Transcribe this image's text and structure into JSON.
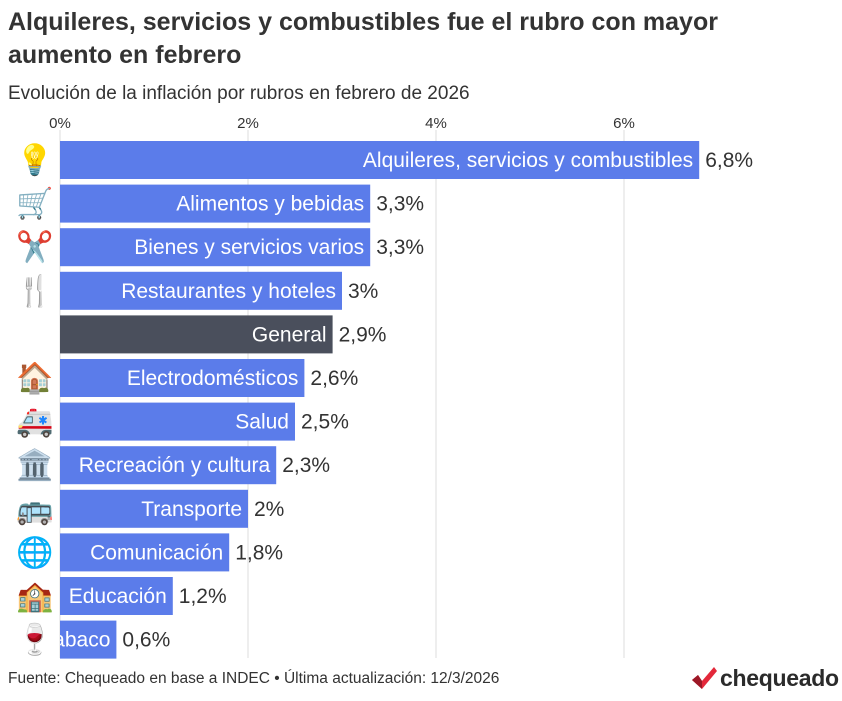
{
  "header": {
    "title": "Alquileres, servicios y combustibles fue el rubro con mayor aumento en febrero",
    "subtitle": "Evolución de la inflación por rubros en febrero de 2026"
  },
  "footer": {
    "source": "Fuente: Chequeado en base a INDEC • Última actualización: 12/3/2026",
    "logo_text": "chequeado"
  },
  "colors": {
    "bar": "#5b7cea",
    "highlight": "#4a4f5c",
    "grid": "#dddddd",
    "logo_accent": "#e3283a"
  },
  "chart_data": {
    "type": "bar",
    "orientation": "horizontal",
    "title": "Alquileres, servicios y combustibles fue el rubro con mayor aumento en febrero",
    "subtitle": "Evolución de la inflación por rubros en febrero de 2026",
    "xlim": [
      0,
      7
    ],
    "ticks": [
      0,
      2,
      4,
      6
    ],
    "tick_labels": [
      "0%",
      "2%",
      "4%",
      "6%"
    ],
    "grid": true,
    "categories": [
      "Alquileres, servicios y combustibles",
      "Alimentos y bebidas",
      "Bienes y servicios varios",
      "Restaurantes y hoteles",
      "General",
      "Electrodomésticos",
      "Salud",
      "Recreación y cultura",
      "Transporte",
      "Comunicación",
      "Educación",
      "Tabaco"
    ],
    "values": [
      6.8,
      3.3,
      3.3,
      3.0,
      2.9,
      2.6,
      2.5,
      2.3,
      2.0,
      1.8,
      1.2,
      0.6
    ],
    "value_labels": [
      "6,8%",
      "3,3%",
      "3,3%",
      "3%",
      "2,9%",
      "2,6%",
      "2,5%",
      "2,3%",
      "2%",
      "1,8%",
      "1,2%",
      "0,6%"
    ],
    "highlighted": [
      false,
      false,
      false,
      false,
      true,
      false,
      false,
      false,
      false,
      false,
      false,
      false
    ],
    "icons": [
      "💡",
      "🛒",
      "✂️",
      "🍴",
      "",
      "🏠",
      "🚑",
      "🏛️",
      "🚌",
      "🌐",
      "🏫",
      "🍷"
    ]
  }
}
